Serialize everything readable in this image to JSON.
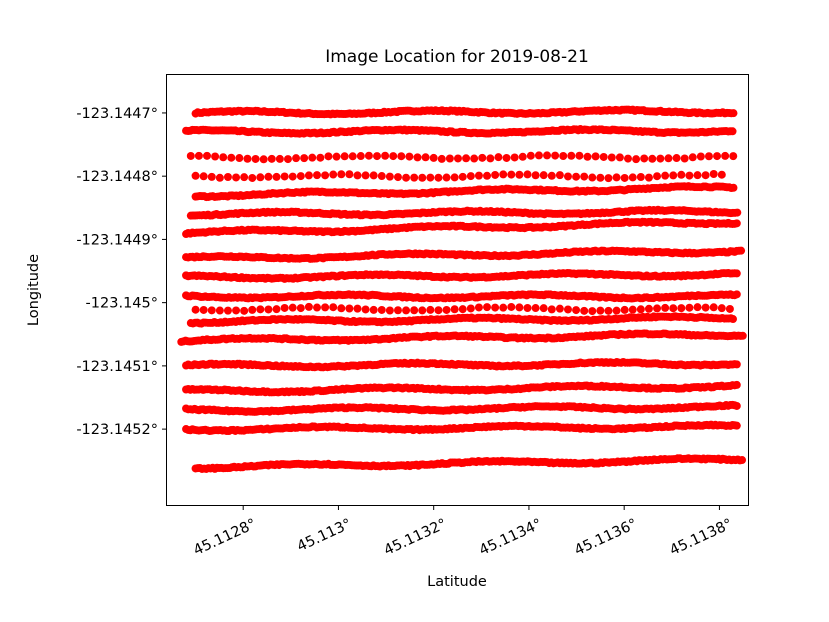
{
  "chart_data": {
    "type": "scatter",
    "title": "Image Location for 2019-08-21",
    "xlabel": "Latitude",
    "ylabel": "Longitude",
    "marker_color": "#ff0000",
    "grid": false,
    "xlim": [
      45.11264,
      45.11386
    ],
    "ylim": [
      -123.14532,
      -123.14464
    ],
    "x_ticks": [
      {
        "value": 45.1128,
        "label": "45.1128°"
      },
      {
        "value": 45.113,
        "label": "45.113°"
      },
      {
        "value": 45.1132,
        "label": "45.1132°"
      },
      {
        "value": 45.1134,
        "label": "45.1134°"
      },
      {
        "value": 45.1136,
        "label": "45.1136°"
      },
      {
        "value": 45.1138,
        "label": "45.1138°"
      }
    ],
    "y_ticks": [
      {
        "value": -123.1447,
        "label": "-123.1447°"
      },
      {
        "value": -123.1448,
        "label": "-123.1448°"
      },
      {
        "value": -123.1449,
        "label": "-123.1449°"
      },
      {
        "value": -123.145,
        "label": "-123.145°"
      },
      {
        "value": -123.1451,
        "label": "-123.1451°"
      },
      {
        "value": -123.1452,
        "label": "-123.1452°"
      }
    ],
    "tracks": [
      {
        "y": -123.1447,
        "x0": 45.1127,
        "x1": 45.11383,
        "drift": 2.5e-06,
        "dense": true
      },
      {
        "y": -123.14473,
        "x0": 45.11268,
        "x1": 45.11383,
        "drift": 1.5e-06,
        "dense": true
      },
      {
        "y": -123.14477,
        "x0": 45.11269,
        "x1": 45.11383,
        "drift": 0.0,
        "dense": false
      },
      {
        "y": -123.1448,
        "x0": 45.1127,
        "x1": 45.11382,
        "drift": 0.0,
        "dense": false
      },
      {
        "y": -123.14483,
        "x0": 45.1127,
        "x1": 45.11383,
        "drift": 1.2e-05,
        "dense": true
      },
      {
        "y": -123.14486,
        "x0": 45.11269,
        "x1": 45.11384,
        "drift": 4e-06,
        "dense": true
      },
      {
        "y": -123.14489,
        "x0": 45.11268,
        "x1": 45.11384,
        "drift": 1.8e-05,
        "dense": true
      },
      {
        "y": -123.14493,
        "x0": 45.11268,
        "x1": 45.11385,
        "drift": 1.2e-05,
        "dense": true
      },
      {
        "y": -123.14496,
        "x0": 45.11268,
        "x1": 45.11384,
        "drift": 5e-06,
        "dense": true
      },
      {
        "y": -123.14499,
        "x0": 45.11268,
        "x1": 45.11384,
        "drift": 0.0,
        "dense": true
      },
      {
        "y": -123.14501,
        "x0": 45.1127,
        "x1": 45.11383,
        "drift": 0.0,
        "dense": false
      },
      {
        "y": -123.14503,
        "x0": 45.11269,
        "x1": 45.11383,
        "drift": 6e-06,
        "dense": true
      },
      {
        "y": -123.14506,
        "x0": 45.11267,
        "x1": 45.11385,
        "drift": 1e-05,
        "dense": true
      },
      {
        "y": -123.1451,
        "x0": 45.11268,
        "x1": 45.11384,
        "drift": 4e-06,
        "dense": true
      },
      {
        "y": -123.14514,
        "x0": 45.11268,
        "x1": 45.11384,
        "drift": 8e-06,
        "dense": true
      },
      {
        "y": -123.14517,
        "x0": 45.11268,
        "x1": 45.11384,
        "drift": 5e-06,
        "dense": true
      },
      {
        "y": -123.1452,
        "x0": 45.11268,
        "x1": 45.11384,
        "drift": 4e-06,
        "dense": true
      },
      {
        "y": -123.14526,
        "x0": 45.1127,
        "x1": 45.11385,
        "drift": 1.2e-05,
        "dense": true
      }
    ]
  }
}
